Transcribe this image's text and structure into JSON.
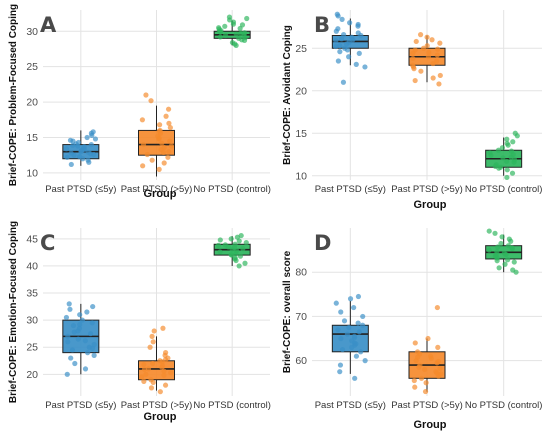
{
  "chart_data": [
    {
      "type": "box",
      "panel_label": "A",
      "ylabel": "Brief-COPE: Problem-Focused Coping",
      "xlabel": "Group",
      "categories": [
        "Past PTSD (≤5y)",
        "Past PTSD (>5y)",
        "No PTSD (control)"
      ],
      "colors": [
        "#3a8fc7",
        "#f58a2c",
        "#2db55d"
      ],
      "ylim": [
        9,
        33
      ],
      "yticks": [
        10,
        15,
        20,
        25,
        30
      ],
      "grid": true,
      "boxes": [
        {
          "min": 11,
          "q1": 12,
          "median": 13,
          "q3": 14,
          "max": 16
        },
        {
          "min": 9.5,
          "q1": 12.5,
          "median": 14,
          "q3": 16,
          "max": 19.5
        },
        {
          "min": 28,
          "q1": 29,
          "median": 29.5,
          "q3": 30,
          "max": 31.5
        }
      ],
      "points": [
        [
          11.2,
          11.8,
          12.0,
          12.3,
          12.5,
          12.7,
          12.9,
          13.0,
          13.1,
          13.2,
          13.4,
          13.5,
          13.7,
          13.8,
          14.0,
          14.1,
          14.3,
          14.5,
          14.8,
          15.0,
          15.3,
          15.6,
          12.2,
          13.3,
          12.6,
          13.9,
          11.5,
          14.6,
          15.8,
          12.8
        ],
        [
          10.5,
          11.0,
          11.8,
          12.2,
          12.6,
          13.0,
          13.3,
          13.6,
          14.0,
          14.2,
          14.5,
          14.8,
          15.2,
          15.6,
          16.0,
          16.4,
          17.0,
          17.5,
          18.0,
          19.0,
          20.2,
          21.0,
          13.8,
          14.9,
          12.9,
          16.8,
          11.4,
          15.9
        ],
        [
          28.0,
          28.4,
          28.7,
          29.0,
          29.2,
          29.4,
          29.5,
          29.6,
          29.8,
          30.0,
          30.1,
          30.3,
          30.5,
          30.7,
          31.0,
          31.3,
          31.6,
          32.0,
          29.1,
          29.9,
          28.8,
          30.4,
          31.8,
          29.7,
          30.9,
          28.2
        ]
      ]
    },
    {
      "type": "box",
      "panel_label": "B",
      "ylabel": "Brief-COPE: Avoidant Coping",
      "xlabel": "Group",
      "categories": [
        "Past PTSD (≤5y)",
        "Past PTSD (>5y)",
        "No PTSD (control)"
      ],
      "colors": [
        "#3a8fc7",
        "#f58a2c",
        "#2db55d"
      ],
      "ylim": [
        9.5,
        29.5
      ],
      "yticks": [
        10,
        15,
        20,
        25
      ],
      "grid": true,
      "boxes": [
        {
          "min": 23,
          "q1": 25,
          "median": 25.8,
          "q3": 26.5,
          "max": 28.5
        },
        {
          "min": 21,
          "q1": 23,
          "median": 24,
          "q3": 25,
          "max": 26.5
        },
        {
          "min": 10,
          "q1": 11,
          "median": 12,
          "q3": 13,
          "max": 14.5
        }
      ],
      "points": [
        [
          21.0,
          22.8,
          23.5,
          24.0,
          24.4,
          24.8,
          25.0,
          25.3,
          25.5,
          25.7,
          25.9,
          26.1,
          26.3,
          26.5,
          26.8,
          27.0,
          27.3,
          27.6,
          28.0,
          28.4,
          28.8,
          29.0,
          25.2,
          26.0,
          24.6,
          27.8,
          23.1,
          26.6
        ],
        [
          20.8,
          21.2,
          21.8,
          22.3,
          22.8,
          23.2,
          23.5,
          23.8,
          24.0,
          24.2,
          24.5,
          24.8,
          25.0,
          25.3,
          25.6,
          26.0,
          26.3,
          26.6,
          23.0,
          24.4,
          21.5,
          25.8,
          22.6,
          24.9
        ],
        [
          9.8,
          10.3,
          10.7,
          11.0,
          11.3,
          11.6,
          11.9,
          12.1,
          12.4,
          12.7,
          13.0,
          13.3,
          13.6,
          14.0,
          14.3,
          14.7,
          15.0,
          11.1,
          12.2,
          12.9,
          10.9,
          13.8,
          11.7,
          12.5
        ]
      ]
    },
    {
      "type": "box",
      "panel_label": "C",
      "ylabel": "Brief-COPE: Emotion-Focused Coping",
      "xlabel": "Group",
      "categories": [
        "Past PTSD (≤5y)",
        "Past PTSD (>5y)",
        "No PTSD (control)"
      ],
      "colors": [
        "#3a8fc7",
        "#f58a2c",
        "#2db55d"
      ],
      "ylim": [
        16,
        47
      ],
      "yticks": [
        20,
        25,
        30,
        35,
        40,
        45
      ],
      "grid": true,
      "boxes": [
        {
          "min": 20,
          "q1": 24,
          "median": 27,
          "q3": 30,
          "max": 33
        },
        {
          "min": 17,
          "q1": 19,
          "median": 21,
          "q3": 22.5,
          "max": 27
        },
        {
          "min": 40,
          "q1": 42,
          "median": 43,
          "q3": 44,
          "max": 45.5
        }
      ],
      "points": [
        [
          20.0,
          21.0,
          22.0,
          23.0,
          23.5,
          24.0,
          24.5,
          25.0,
          25.5,
          26.0,
          26.5,
          27.0,
          27.5,
          28.0,
          28.5,
          29.0,
          29.5,
          30.0,
          30.5,
          31.0,
          31.5,
          32.0,
          32.5,
          33.0,
          26.2,
          27.8,
          24.8,
          29.2
        ],
        [
          16.8,
          17.5,
          18.0,
          18.5,
          19.0,
          19.5,
          20.0,
          20.3,
          20.6,
          21.0,
          21.3,
          21.6,
          22.0,
          22.3,
          22.7,
          23.0,
          23.5,
          24.0,
          25.0,
          26.0,
          27.0,
          28.0,
          28.5,
          19.8,
          21.8,
          20.9,
          18.7,
          22.5
        ],
        [
          40.0,
          40.5,
          41.0,
          41.5,
          41.8,
          42.0,
          42.3,
          42.6,
          43.0,
          43.2,
          43.5,
          43.8,
          44.0,
          44.3,
          44.6,
          45.0,
          45.3,
          45.6,
          42.8,
          43.4,
          41.3,
          44.8,
          42.1,
          43.9
        ]
      ]
    },
    {
      "type": "box",
      "panel_label": "D",
      "ylabel": "Brief-COPE: overall score",
      "xlabel": "Group",
      "categories": [
        "Past PTSD (≤5y)",
        "Past PTSD (>5y)",
        "No PTSD (control)"
      ],
      "colors": [
        "#3a8fc7",
        "#f58a2c",
        "#2db55d"
      ],
      "ylim": [
        52,
        90
      ],
      "yticks": [
        60,
        70,
        80
      ],
      "grid": true,
      "boxes": [
        {
          "min": 57,
          "q1": 62,
          "median": 66,
          "q3": 68,
          "max": 73.5
        },
        {
          "min": 53,
          "q1": 56,
          "median": 59,
          "q3": 62,
          "max": 65
        },
        {
          "min": 80,
          "q1": 83,
          "median": 84.5,
          "q3": 86,
          "max": 88.5
        }
      ],
      "points": [
        [
          56.0,
          57.5,
          59.0,
          60.0,
          61.0,
          62.0,
          62.5,
          63.0,
          63.5,
          64.0,
          64.5,
          65.0,
          65.5,
          66.0,
          66.5,
          67.0,
          67.5,
          68.0,
          68.5,
          69.0,
          70.0,
          71.0,
          72.0,
          73.0,
          74.0,
          74.5,
          65.2,
          63.8
        ],
        [
          53.0,
          54.0,
          55.0,
          55.5,
          56.0,
          56.5,
          57.0,
          57.5,
          58.0,
          58.5,
          59.0,
          59.5,
          60.0,
          60.5,
          61.0,
          61.5,
          62.0,
          63.0,
          64.0,
          65.0,
          72.0,
          58.2,
          59.8,
          57.2,
          60.8,
          56.8
        ],
        [
          80.0,
          80.5,
          81.0,
          81.8,
          82.3,
          82.8,
          83.2,
          83.6,
          84.0,
          84.3,
          84.6,
          85.0,
          85.3,
          85.7,
          86.0,
          86.5,
          87.0,
          87.5,
          88.0,
          88.8,
          89.3,
          83.9,
          85.5,
          82.6
        ]
      ]
    }
  ]
}
